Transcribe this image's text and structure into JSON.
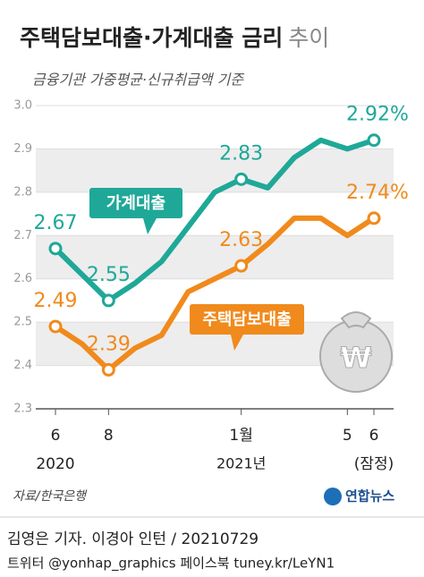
{
  "chart_data": {
    "type": "line",
    "title": "주택담보대출·가계대출 금리",
    "title_suffix": "추이",
    "subtitle": "금융기관 가중평균·신규취급액 기준",
    "categories": [
      "6",
      null,
      "8",
      null,
      null,
      null,
      null,
      "1월",
      null,
      null,
      null,
      "5",
      "6"
    ],
    "year_labels": [
      "2020",
      null,
      null,
      null,
      null,
      null,
      null,
      "2021년",
      null,
      null,
      null,
      null,
      "(잠정)"
    ],
    "ylim": [
      2.3,
      3.0
    ],
    "yticks": [
      2.3,
      2.4,
      2.5,
      2.6,
      2.7,
      2.8,
      2.9,
      {
        "value": 3.0,
        "label": "3.0"
      }
    ],
    "grid": true,
    "series": [
      {
        "name": "가계대출",
        "color": "#1fa898",
        "values": [
          2.67,
          2.61,
          2.55,
          2.59,
          2.64,
          2.72,
          2.8,
          2.83,
          2.81,
          2.88,
          2.92,
          2.9,
          2.92
        ],
        "value_labels": [
          "2.67",
          null,
          "2.55",
          null,
          null,
          null,
          null,
          "2.83",
          null,
          null,
          null,
          null,
          "2.92%"
        ]
      },
      {
        "name": "주택담보대출",
        "color": "#f08a1c",
        "values": [
          2.49,
          2.45,
          2.39,
          2.44,
          2.47,
          2.57,
          2.6,
          2.63,
          2.68,
          2.74,
          2.74,
          2.7,
          2.74
        ],
        "value_labels": [
          "2.49",
          null,
          "2.39",
          null,
          null,
          null,
          null,
          "2.63",
          null,
          null,
          null,
          null,
          "2.74%"
        ]
      }
    ],
    "source": "자료/한국은행",
    "logo": "연합뉴스",
    "byline": "김영은 기자. 이경아 인턴 / 20210729",
    "social": "트위터 @yonhap_graphics  페이스북 tuney.kr/LeYN1"
  }
}
